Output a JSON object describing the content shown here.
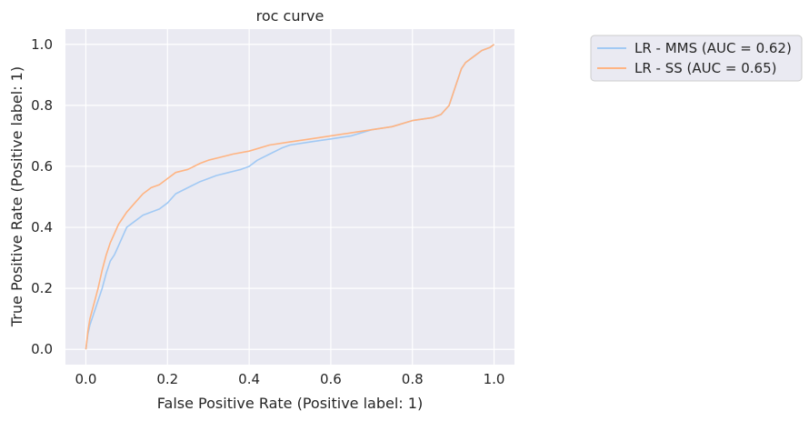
{
  "chart_data": {
    "type": "line",
    "title": "roc curve",
    "xlabel": "False Positive Rate (Positive label: 1)",
    "ylabel": "True Positive Rate (Positive label: 1)",
    "xlim": [
      -0.05,
      1.05
    ],
    "ylim": [
      -0.05,
      1.05
    ],
    "xticks": [
      0.0,
      0.2,
      0.4,
      0.6,
      0.8,
      1.0
    ],
    "yticks": [
      0.0,
      0.2,
      0.4,
      0.6,
      0.8,
      1.0
    ],
    "xtick_labels": [
      "0.0",
      "0.2",
      "0.4",
      "0.6",
      "0.8",
      "1.0"
    ],
    "ytick_labels": [
      "0.0",
      "0.2",
      "0.4",
      "0.6",
      "0.8",
      "1.0"
    ],
    "grid": true,
    "legend_position": "outside-top-right",
    "background_color": "#eaeaf2",
    "series": [
      {
        "name": "LR - MMS (AUC = 0.62)",
        "color": "#a1c9f4",
        "x": [
          0.0,
          0.005,
          0.01,
          0.02,
          0.03,
          0.04,
          0.05,
          0.06,
          0.07,
          0.08,
          0.09,
          0.1,
          0.12,
          0.14,
          0.16,
          0.18,
          0.2,
          0.22,
          0.25,
          0.28,
          0.3,
          0.32,
          0.35,
          0.38,
          0.4,
          0.42,
          0.45,
          0.48,
          0.5,
          0.55,
          0.6,
          0.65,
          0.7,
          0.75,
          0.8,
          0.85,
          0.87,
          0.89,
          0.9,
          0.91,
          0.92,
          0.93,
          0.95,
          0.97,
          0.99,
          1.0
        ],
        "y": [
          0.0,
          0.05,
          0.08,
          0.12,
          0.16,
          0.2,
          0.25,
          0.29,
          0.31,
          0.34,
          0.37,
          0.4,
          0.42,
          0.44,
          0.45,
          0.46,
          0.48,
          0.51,
          0.53,
          0.55,
          0.56,
          0.57,
          0.58,
          0.59,
          0.6,
          0.62,
          0.64,
          0.66,
          0.67,
          0.68,
          0.69,
          0.7,
          0.72,
          0.73,
          0.75,
          0.76,
          0.77,
          0.8,
          0.84,
          0.88,
          0.92,
          0.94,
          0.96,
          0.98,
          0.99,
          1.0
        ]
      },
      {
        "name": "LR - SS (AUC = 0.65)",
        "color": "#ffb482",
        "x": [
          0.0,
          0.005,
          0.01,
          0.02,
          0.03,
          0.04,
          0.05,
          0.06,
          0.07,
          0.08,
          0.09,
          0.1,
          0.12,
          0.14,
          0.16,
          0.18,
          0.2,
          0.22,
          0.25,
          0.28,
          0.3,
          0.33,
          0.36,
          0.4,
          0.45,
          0.5,
          0.55,
          0.6,
          0.65,
          0.7,
          0.75,
          0.8,
          0.85,
          0.87,
          0.89,
          0.9,
          0.91,
          0.92,
          0.93,
          0.95,
          0.97,
          0.99,
          1.0
        ],
        "y": [
          0.0,
          0.06,
          0.1,
          0.15,
          0.2,
          0.26,
          0.31,
          0.35,
          0.38,
          0.41,
          0.43,
          0.45,
          0.48,
          0.51,
          0.53,
          0.54,
          0.56,
          0.58,
          0.59,
          0.61,
          0.62,
          0.63,
          0.64,
          0.65,
          0.67,
          0.68,
          0.69,
          0.7,
          0.71,
          0.72,
          0.73,
          0.75,
          0.76,
          0.77,
          0.8,
          0.84,
          0.88,
          0.92,
          0.94,
          0.96,
          0.98,
          0.99,
          1.0
        ]
      }
    ]
  }
}
